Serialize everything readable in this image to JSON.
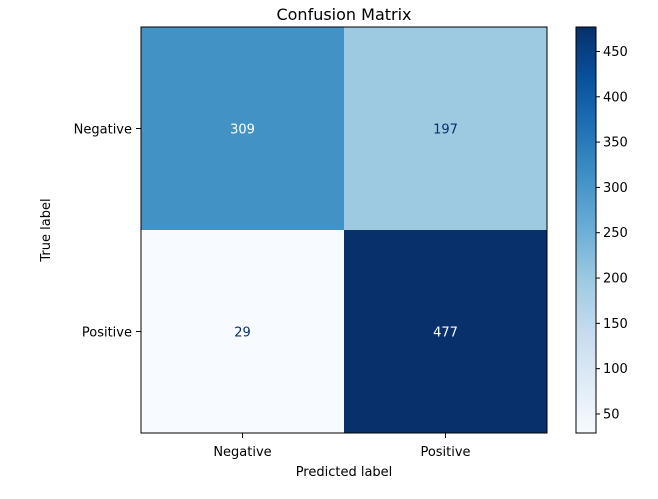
{
  "chart_data": {
    "type": "heatmap",
    "title": "Confusion Matrix",
    "xlabel": "Predicted label",
    "ylabel": "True label",
    "x_categories": [
      "Negative",
      "Positive"
    ],
    "y_categories": [
      "Negative",
      "Positive"
    ],
    "values": [
      [
        309,
        197
      ],
      [
        29,
        477
      ]
    ],
    "colormap": "Blues",
    "color_range": [
      29,
      477
    ],
    "colorbar_ticks": [
      50,
      100,
      150,
      200,
      250,
      300,
      350,
      400,
      450
    ],
    "text_color_light": "#ffffff",
    "text_color_dark": "#08306b"
  }
}
